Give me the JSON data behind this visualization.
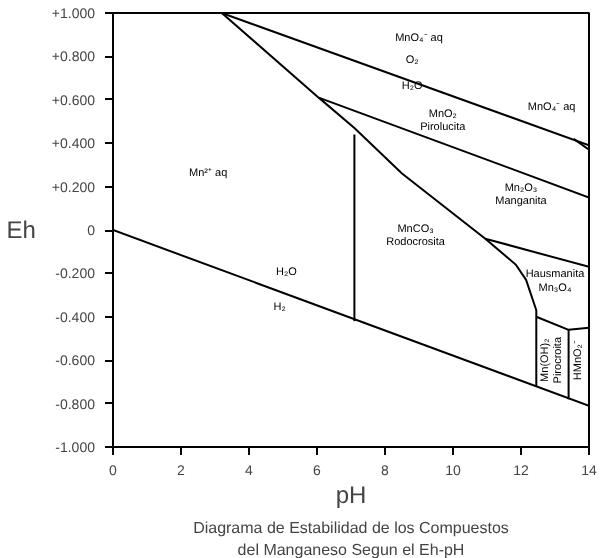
{
  "chart_data": {
    "type": "line",
    "title": "Diagrama de Estabilidad de los Compuestos\ndel Manganeso Segun el Eh-pH",
    "xlabel": "pH",
    "ylabel": "Eh",
    "xlim": [
      0,
      14
    ],
    "xticks": [
      0,
      2,
      4,
      6,
      8,
      10,
      12,
      14
    ],
    "ylim": [
      -1,
      1
    ],
    "yticks": [
      {
        "value": 1,
        "label": "+1.000"
      },
      {
        "value": 0.8,
        "label": "+0.800"
      },
      {
        "value": 0.6,
        "label": "+0.600"
      },
      {
        "value": 0.4,
        "label": "+0.400"
      },
      {
        "value": 0.2,
        "label": "+0.200"
      },
      0,
      {
        "value": -0.2,
        "label": "-0.200"
      },
      {
        "value": -0.4,
        "label": "-0.400"
      },
      {
        "value": -0.6,
        "label": "-0.600"
      },
      {
        "value": -0.8,
        "label": "-0.800"
      },
      {
        "value": -1,
        "label": "-1.000"
      }
    ],
    "grid": false,
    "line_style": "solid",
    "marker": "none",
    "series": [
      {
        "color": "#000000",
        "x": [
          3.2,
          14
        ],
        "values": [
          1.0,
          0.39
        ]
      },
      {
        "color": "#000000",
        "x": [
          3.2,
          6.05,
          14
        ],
        "values": [
          1.0,
          0.61,
          0.15
        ]
      },
      {
        "color": "#000000",
        "x": [
          6.05,
          7.1,
          8.5,
          10.95,
          11.85,
          12.15,
          12.45,
          12.45
        ],
        "values": [
          0.61,
          0.47,
          0.26,
          -0.04,
          -0.16,
          -0.23,
          -0.37,
          -0.72
        ]
      },
      {
        "color": "#000000",
        "x": [
          10.95,
          14
        ],
        "values": [
          -0.04,
          -0.17
        ]
      },
      {
        "color": "#000000",
        "x": [
          12.45,
          13.4,
          14
        ],
        "values": [
          -0.4,
          -0.46,
          -0.45
        ]
      },
      {
        "color": "#000000",
        "x": [
          13.4,
          13.4
        ],
        "values": [
          -0.46,
          -0.78
        ]
      },
      {
        "color": "#000000",
        "x": [
          7.1,
          7.1
        ],
        "values": [
          0.44,
          -0.42
        ]
      },
      {
        "color": "#000000",
        "x": [
          13.55,
          14
        ],
        "values": [
          0.42,
          0.37
        ]
      },
      {
        "color": "#000000",
        "x": [
          0,
          14
        ],
        "values": [
          0,
          -0.81
        ]
      }
    ],
    "annotations": [
      "MnO₄⁻ aq",
      "MnO₄⁻ aq",
      "O₂",
      "H₂O",
      "MnO₂\nPirolucita",
      "Mn²⁺ aq",
      "Mn₂O₃\nManganita",
      "MnCO₃\nRodocrosita",
      "Hausmanita\nMn₃O₄",
      "H₂O",
      "H₂",
      "Mn(OH)₂\nPirocroita",
      "HMnO₂⁻"
    ]
  }
}
